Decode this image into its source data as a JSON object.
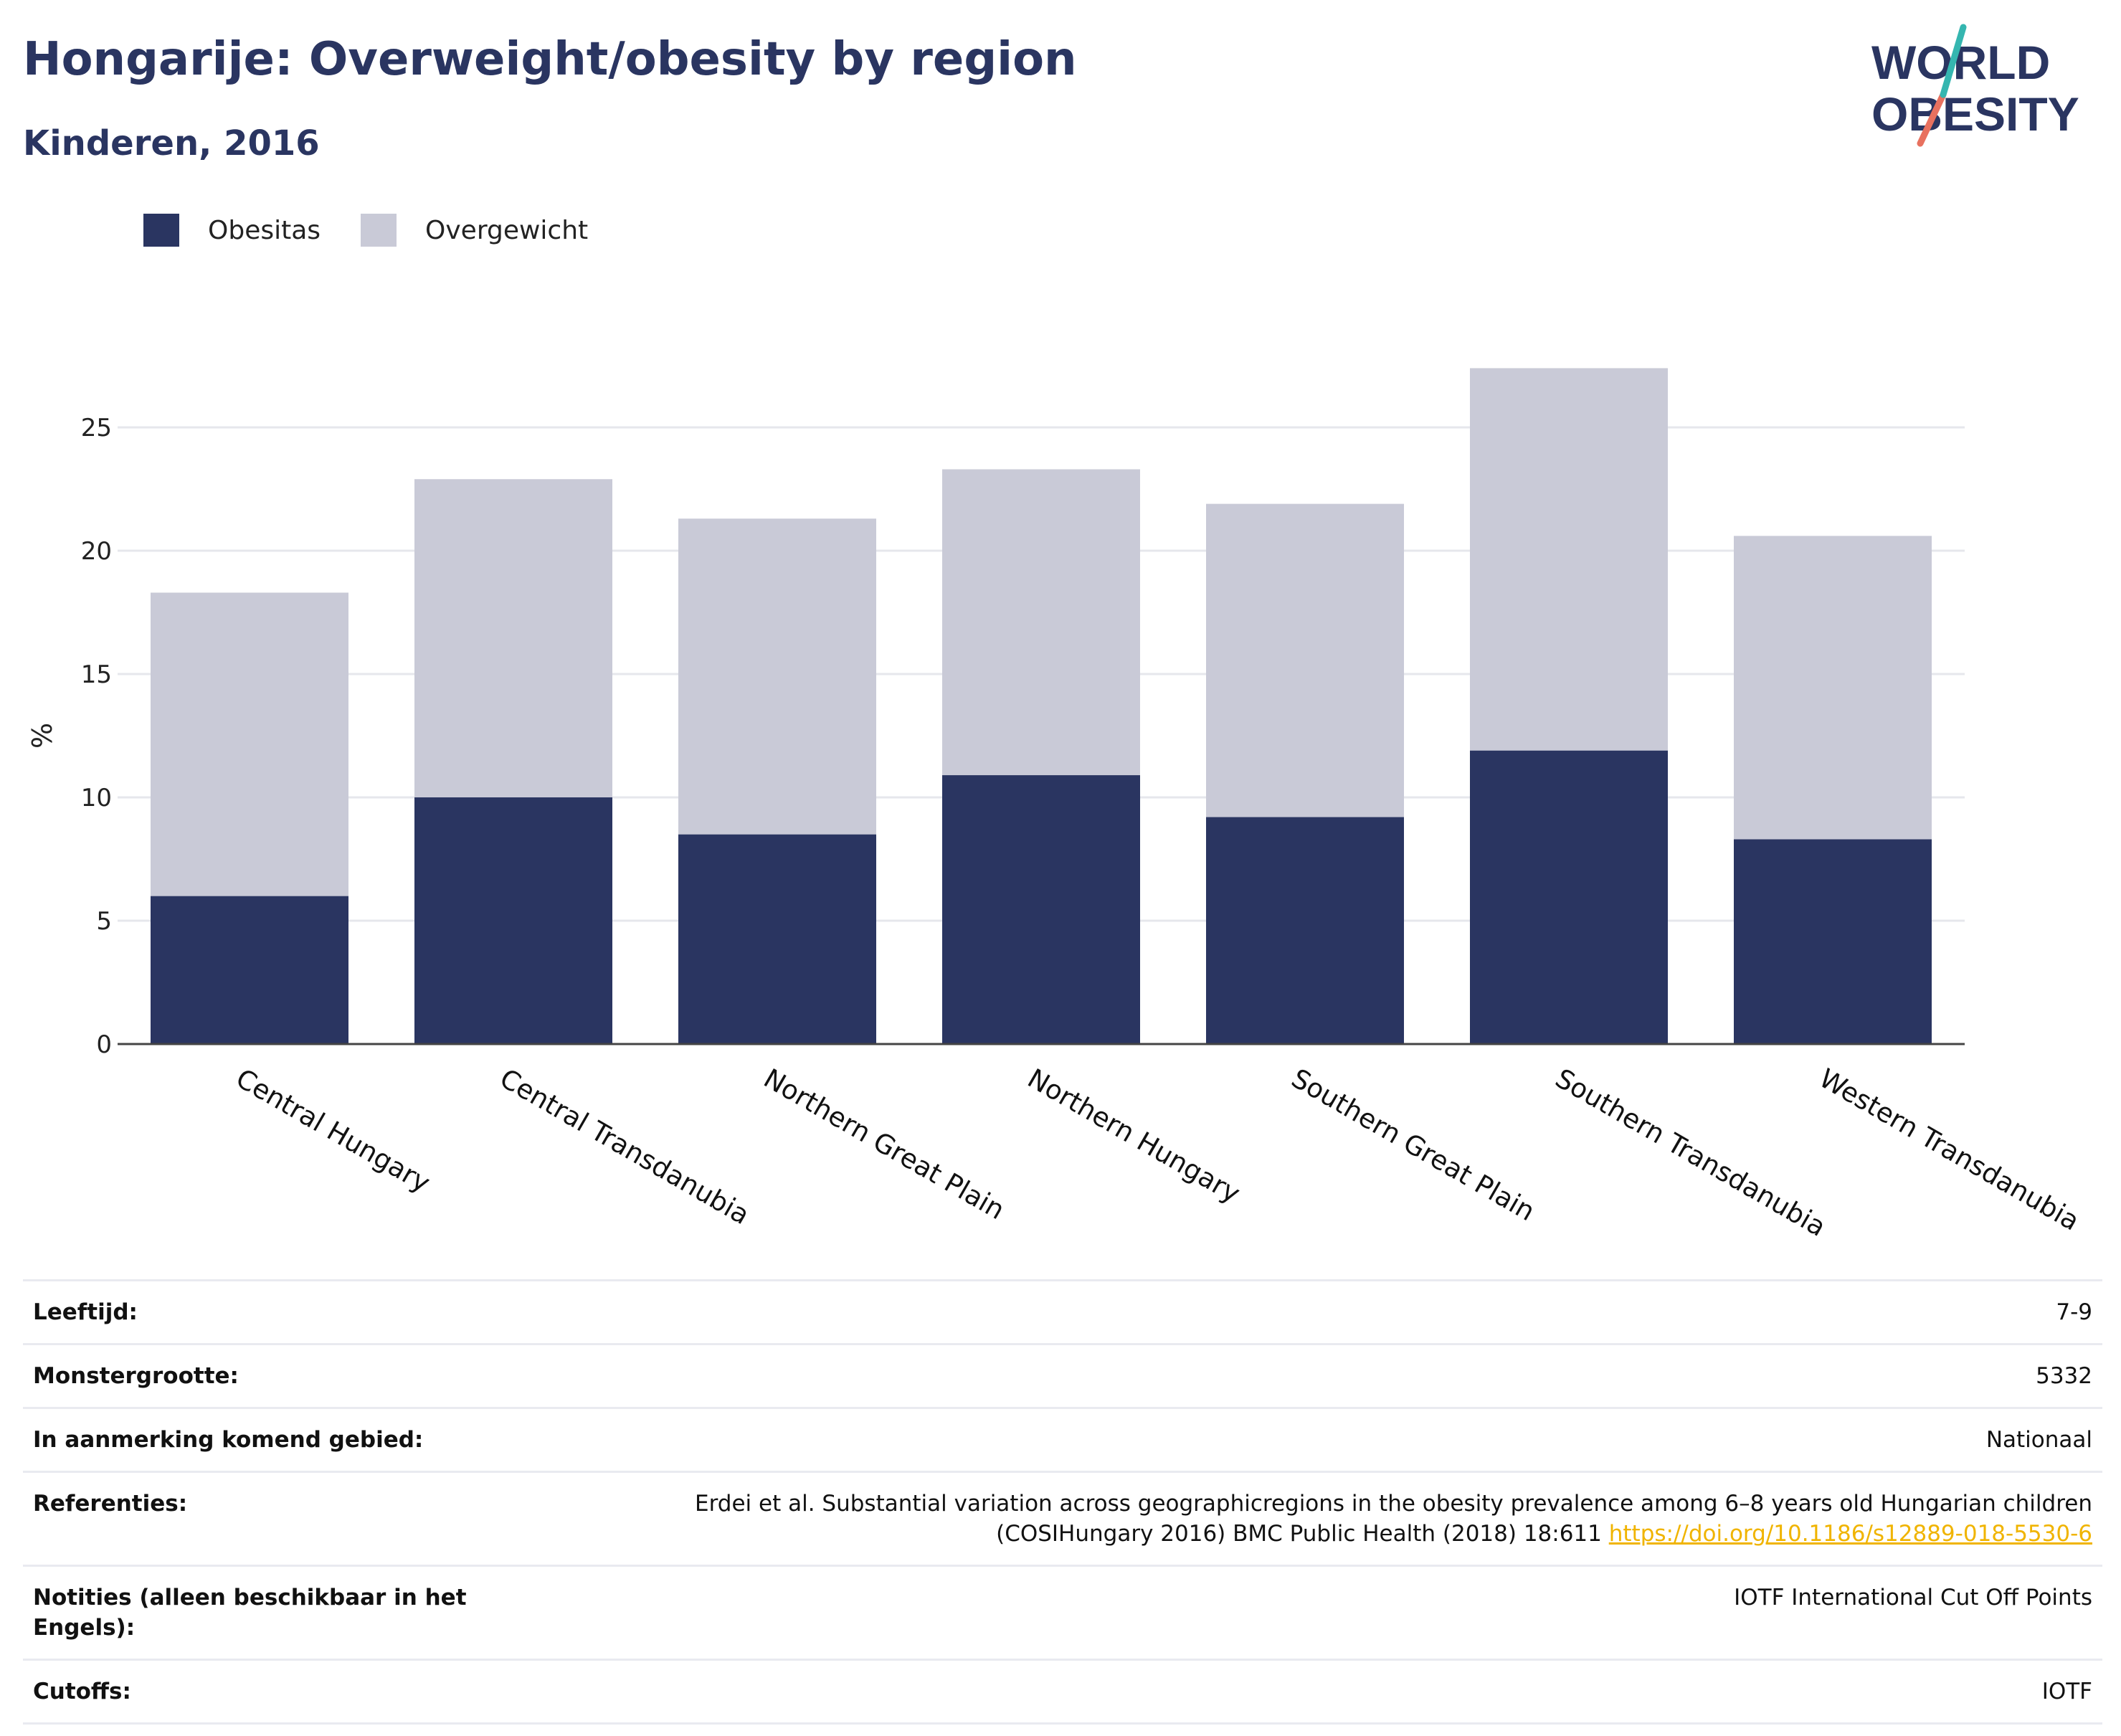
{
  "header": {
    "title": "Hongarije: Overweight/obesity by region",
    "subtitle": "Kinderen, 2016"
  },
  "logo": {
    "line1": "WORLD",
    "line2": "OBESITY"
  },
  "legend": {
    "items": [
      {
        "label": "Obesitas",
        "color": "#2a3561"
      },
      {
        "label": "Overgewicht",
        "color": "#c9cad7"
      }
    ]
  },
  "chart_data": {
    "type": "bar",
    "stacked": true,
    "categories": [
      "Central Hungary",
      "Central Transdanubia",
      "Northern Great Plain",
      "Northern Hungary",
      "Southern Great Plain",
      "Southern Transdanubia",
      "Western Transdanubia"
    ],
    "series": [
      {
        "name": "Obesitas",
        "color": "#2a3561",
        "values": [
          6.0,
          10.0,
          8.5,
          10.9,
          9.2,
          11.9,
          8.3
        ]
      },
      {
        "name": "Overgewicht",
        "color": "#c9cad7",
        "values": [
          12.3,
          12.9,
          12.8,
          12.4,
          12.7,
          15.5,
          12.3
        ]
      }
    ],
    "xlabel": "",
    "ylabel": "%",
    "ylim": [
      0,
      28
    ],
    "yticks": [
      0,
      5,
      10,
      15,
      20,
      25
    ],
    "grid": true,
    "legend_position": "top-left"
  },
  "meta": {
    "rows": [
      {
        "label": "Leeftijd:",
        "value": "7-9"
      },
      {
        "label": "Monstergrootte:",
        "value": "5332"
      },
      {
        "label": "In aanmerking komend gebied:",
        "value": "Nationaal"
      },
      {
        "label": "Referenties:",
        "value": "Erdei et al. Substantial variation across geographicregions in the obesity prevalence among 6–8 years old Hungarian children (COSIHungary 2016) BMC Public Health (2018) 18:611 ",
        "link": "https://doi.org/10.1186/s12889-018-5530-6"
      },
      {
        "label": "Notities (alleen beschikbaar in het Engels):",
        "value": "IOTF International Cut Off Points"
      },
      {
        "label": "Cutoffs:",
        "value": "IOTF"
      }
    ]
  }
}
